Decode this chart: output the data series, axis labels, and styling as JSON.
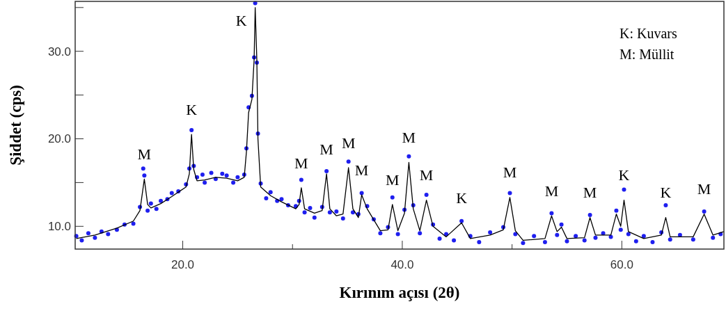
{
  "chart_data": {
    "type": "line",
    "xlabel": "Kırınım açısı (2θ)",
    "ylabel": "Şiddet (cps)",
    "xlim": [
      10.2,
      69.3
    ],
    "ylim": [
      7.4,
      35.7
    ],
    "xticks": [
      {
        "value": 20,
        "label": "20.0"
      },
      {
        "value": 30,
        "label": null
      },
      {
        "value": 40,
        "label": "40.0"
      },
      {
        "value": 50,
        "label": null
      },
      {
        "value": 60,
        "label": "60.0"
      }
    ],
    "yticks": [
      {
        "value": 10,
        "label": "10.0"
      },
      {
        "value": 15,
        "label": null
      },
      {
        "value": 20,
        "label": "20.0"
      },
      {
        "value": 25,
        "label": null
      },
      {
        "value": 30,
        "label": "30.0"
      },
      {
        "value": 35,
        "label": null
      }
    ],
    "grid": false,
    "series": [
      {
        "type": "scatter",
        "color": "#1f1fef",
        "marker": "circle",
        "x": [
          10.3,
          10.8,
          11.4,
          12,
          12.6,
          13.2,
          14,
          14.7,
          15.5,
          16.1,
          16.4,
          16.5,
          16.8,
          17.1,
          17.6,
          18,
          18.6,
          19,
          19.6,
          20.3,
          20.6,
          20.8,
          21.0,
          21.3,
          21.8,
          22,
          22.6,
          23,
          23.6,
          24,
          24.6,
          25,
          25.6,
          25.8,
          26.0,
          26.3,
          26.5,
          26.6,
          26.75,
          26.85,
          27.1,
          27.6,
          28,
          28.6,
          29,
          29.6,
          30.3,
          30.6,
          30.8,
          31.1,
          31.6,
          32,
          32.7,
          33.1,
          33.4,
          34,
          34.6,
          35.1,
          35.5,
          36,
          36.3,
          36.8,
          37.4,
          38,
          38.7,
          39.1,
          39.6,
          40.2,
          40.6,
          41.0,
          41.6,
          42.2,
          42.8,
          43.4,
          44,
          44.7,
          45.4,
          46.2,
          47,
          48,
          49.2,
          49.8,
          50.3,
          51,
          52,
          53,
          53.6,
          54.1,
          54.5,
          55,
          55.8,
          56.6,
          57.1,
          57.6,
          58.3,
          59,
          59.5,
          59.9,
          60.2,
          60.6,
          61.3,
          62,
          62.8,
          63.6,
          64.0,
          64.4,
          65.3,
          66.5,
          67.5,
          68.3,
          69.0
        ],
        "values": [
          8.9,
          8.4,
          9.2,
          8.7,
          9.4,
          9.1,
          9.6,
          10.2,
          10.3,
          12.2,
          16.6,
          15.8,
          11.8,
          12.6,
          12.0,
          12.9,
          13.1,
          13.8,
          14.0,
          14.8,
          16.6,
          21.0,
          16.9,
          15.6,
          15.9,
          15.0,
          16.1,
          15.4,
          16.0,
          15.8,
          15.0,
          15.6,
          15.9,
          18.9,
          23.6,
          24.9,
          29.3,
          35.5,
          28.7,
          20.6,
          14.9,
          13.2,
          13.9,
          12.9,
          13.1,
          12.4,
          12.3,
          12.9,
          15.3,
          11.6,
          12.1,
          11.0,
          12.2,
          16.3,
          11.6,
          11.7,
          10.9,
          17.4,
          11.6,
          11.4,
          13.8,
          12.3,
          10.8,
          9.2,
          9.9,
          13.3,
          9.1,
          11.9,
          18.0,
          12.4,
          9.2,
          13.6,
          10.2,
          8.6,
          9.1,
          8.4,
          10.6,
          8.9,
          8.2,
          9.3,
          9.9,
          13.8,
          9.1,
          8.1,
          8.9,
          8.2,
          11.5,
          9.0,
          10.2,
          8.3,
          8.9,
          8.4,
          11.3,
          8.7,
          9.2,
          8.8,
          11.8,
          9.6,
          14.2,
          9.1,
          8.3,
          8.9,
          8.2,
          9.3,
          12.4,
          8.5,
          9.0,
          8.5,
          11.7,
          8.7,
          9.1
        ]
      },
      {
        "color": "#000000",
        "line_style": "solid",
        "x": [
          10.3,
          12,
          14,
          15.5,
          16.1,
          16.5,
          16.8,
          17.1,
          18,
          19,
          20.3,
          20.6,
          20.8,
          21.0,
          21.3,
          22,
          23,
          24,
          25,
          25.6,
          25.8,
          26.0,
          26.3,
          26.5,
          26.6,
          26.75,
          26.85,
          27.1,
          28,
          29,
          30.3,
          30.6,
          30.8,
          31.1,
          32,
          32.7,
          33.1,
          33.4,
          34,
          34.6,
          35.1,
          35.5,
          36,
          36.3,
          36.8,
          38,
          38.7,
          39.1,
          39.6,
          40.2,
          40.6,
          41.0,
          41.6,
          42.2,
          42.8,
          44,
          45.4,
          46.2,
          48,
          49.2,
          49.8,
          50.3,
          51,
          53,
          53.6,
          54.1,
          54.5,
          55,
          56.6,
          57.1,
          57.6,
          59,
          59.5,
          59.9,
          60.2,
          60.6,
          62,
          63.6,
          64.0,
          64.4,
          66.5,
          67.5,
          68.3,
          69.3
        ],
        "values": [
          8.6,
          9.0,
          9.8,
          10.6,
          11.8,
          15.4,
          12.5,
          12.1,
          12.6,
          13.4,
          14.5,
          16.0,
          20.5,
          16.5,
          15.2,
          15.3,
          15.6,
          15.5,
          15.2,
          15.6,
          18.5,
          23.0,
          24.5,
          29.0,
          35.0,
          29.0,
          20.0,
          14.5,
          13.5,
          12.8,
          12.0,
          12.5,
          14.4,
          12.0,
          11.5,
          11.8,
          16.0,
          12.0,
          11.2,
          11.4,
          16.7,
          12.0,
          11.0,
          13.6,
          12.0,
          9.5,
          9.6,
          12.5,
          9.5,
          11.5,
          17.3,
          12.0,
          9.5,
          13.0,
          10.0,
          8.8,
          10.4,
          8.6,
          9.0,
          9.6,
          13.3,
          9.5,
          8.4,
          8.6,
          11.2,
          9.4,
          9.9,
          8.6,
          8.7,
          11.0,
          9.0,
          9.0,
          11.4,
          10.0,
          13.0,
          9.4,
          8.6,
          9.0,
          11.0,
          8.8,
          8.8,
          11.4,
          9.0,
          9.4
        ]
      }
    ],
    "annotations": [
      "K: Kuvars",
      "M: Müllit",
      {
        "text": "M",
        "x": 16.5,
        "y": 15.4
      },
      {
        "text": "K",
        "x": 20.8,
        "y": 20.5
      },
      {
        "text": "K",
        "x": 26.6,
        "y": 35.0
      },
      {
        "text": "M",
        "x": 30.8,
        "y": 14.4
      },
      {
        "text": "M",
        "x": 33.1,
        "y": 16.0
      },
      {
        "text": "M",
        "x": 35.1,
        "y": 16.7
      },
      {
        "text": "M",
        "x": 36.3,
        "y": 13.6
      },
      {
        "text": "M",
        "x": 39.1,
        "y": 12.5
      },
      {
        "text": "M",
        "x": 40.6,
        "y": 17.3
      },
      {
        "text": "M",
        "x": 42.2,
        "y": 13.0
      },
      {
        "text": "K",
        "x": 45.4,
        "y": 10.4
      },
      {
        "text": "M",
        "x": 49.8,
        "y": 13.3
      },
      {
        "text": "M",
        "x": 53.6,
        "y": 11.2
      },
      {
        "text": "M",
        "x": 57.1,
        "y": 11.0
      },
      {
        "text": "K",
        "x": 60.2,
        "y": 13.0
      },
      {
        "text": "K",
        "x": 64.0,
        "y": 11.0
      },
      {
        "text": "M",
        "x": 67.5,
        "y": 11.4
      }
    ]
  }
}
